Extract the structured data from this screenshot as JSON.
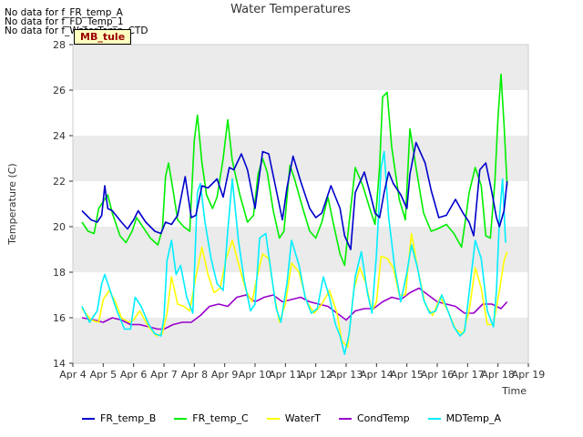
{
  "no_data_messages": [
    "No data for f_FR_temp_A",
    "No data for f_FD_Temp_1",
    "No data for f_WaterTemp_CTD"
  ],
  "site_badge": "MB_tule",
  "chart_data": {
    "type": "line",
    "title": "Water Temperatures",
    "xlabel": "Time",
    "ylabel": "Temperature (C)",
    "ylim": [
      14,
      28
    ],
    "yticks": [
      14,
      16,
      18,
      20,
      22,
      24,
      26,
      28
    ],
    "xlim": [
      4,
      19
    ],
    "xticks": [
      4,
      5,
      6,
      7,
      8,
      9,
      10,
      11,
      12,
      13,
      14,
      15,
      16,
      17,
      18,
      19
    ],
    "xtick_labels": [
      "Apr 4",
      "Apr 5",
      "Apr 6",
      "Apr 7",
      "Apr 8",
      "Apr 9",
      "Apr 10",
      "Apr 11",
      "Apr 12",
      "Apr 13",
      "Apr 14",
      "Apr 15",
      "Apr 16",
      "Apr 17",
      "Apr 18",
      "Apr 19"
    ],
    "grid": "horizontal bands",
    "legend_placement": "bottom",
    "series": [
      {
        "name": "FR_temp_B",
        "color": "#0000cc",
        "x": [
          4.3,
          4.6,
          4.8,
          4.95,
          5.05,
          5.15,
          5.3,
          5.6,
          5.8,
          6.0,
          6.15,
          6.4,
          6.7,
          6.9,
          7.05,
          7.25,
          7.45,
          7.7,
          7.9,
          8.05,
          8.25,
          8.45,
          8.75,
          8.95,
          9.15,
          9.3,
          9.55,
          9.75,
          10.0,
          10.25,
          10.45,
          10.7,
          10.9,
          11.05,
          11.25,
          11.5,
          11.8,
          12.0,
          12.2,
          12.5,
          12.8,
          12.95,
          13.15,
          13.3,
          13.6,
          13.8,
          13.95,
          14.1,
          14.25,
          14.4,
          14.55,
          14.8,
          15.0,
          15.1,
          15.3,
          15.6,
          15.8,
          16.05,
          16.3,
          16.6,
          16.85,
          17.05,
          17.2,
          17.4,
          17.6,
          17.8,
          17.95,
          18.05,
          18.2,
          18.3
        ],
        "y": [
          20.7,
          20.3,
          20.2,
          20.5,
          21.8,
          20.8,
          20.7,
          20.2,
          19.9,
          20.3,
          20.7,
          20.2,
          19.8,
          19.7,
          20.2,
          20.1,
          20.5,
          22.2,
          20.4,
          20.5,
          21.8,
          21.7,
          22.1,
          21.3,
          22.6,
          22.5,
          23.2,
          22.5,
          20.8,
          23.3,
          23.2,
          21.6,
          20.3,
          21.7,
          23.1,
          22.0,
          20.8,
          20.4,
          20.6,
          21.8,
          20.8,
          19.6,
          19.0,
          21.5,
          22.4,
          21.4,
          20.6,
          20.4,
          21.5,
          22.4,
          21.9,
          21.4,
          20.8,
          22.3,
          23.7,
          22.8,
          21.6,
          20.4,
          20.5,
          21.2,
          20.6,
          20.2,
          19.6,
          22.5,
          22.8,
          21.5,
          20.4,
          20.0,
          20.7,
          22.0
        ]
      },
      {
        "name": "FR_temp_C",
        "color": "#00ee00",
        "x": [
          4.3,
          4.5,
          4.7,
          4.85,
          5.0,
          5.15,
          5.3,
          5.55,
          5.75,
          5.95,
          6.1,
          6.3,
          6.55,
          6.8,
          6.95,
          7.05,
          7.15,
          7.3,
          7.45,
          7.65,
          7.85,
          8.0,
          8.1,
          8.25,
          8.4,
          8.6,
          8.75,
          8.95,
          9.1,
          9.25,
          9.5,
          9.75,
          9.95,
          10.1,
          10.25,
          10.4,
          10.6,
          10.8,
          10.95,
          11.15,
          11.3,
          11.55,
          11.8,
          12.0,
          12.2,
          12.4,
          12.6,
          12.8,
          12.95,
          13.1,
          13.3,
          13.55,
          13.8,
          13.95,
          14.1,
          14.2,
          14.35,
          14.5,
          14.75,
          14.95,
          15.1,
          15.3,
          15.55,
          15.8,
          16.0,
          16.3,
          16.55,
          16.8,
          16.95,
          17.05,
          17.25,
          17.45,
          17.6,
          17.75,
          17.9,
          18.0,
          18.1,
          18.2,
          18.3
        ],
        "y": [
          20.2,
          19.8,
          19.7,
          20.8,
          21.1,
          21.4,
          20.6,
          19.6,
          19.3,
          19.8,
          20.4,
          20.0,
          19.5,
          19.2,
          19.9,
          22.2,
          22.8,
          21.6,
          20.3,
          20.0,
          19.8,
          23.8,
          24.9,
          22.8,
          21.4,
          20.8,
          21.3,
          23.0,
          24.7,
          22.9,
          21.4,
          20.2,
          20.5,
          22.3,
          23.0,
          22.4,
          20.7,
          19.5,
          19.8,
          22.7,
          22.1,
          20.9,
          19.8,
          19.5,
          20.2,
          21.3,
          20.0,
          18.8,
          18.3,
          20.2,
          22.6,
          21.8,
          20.7,
          20.1,
          22.6,
          25.7,
          25.9,
          23.5,
          21.2,
          20.3,
          24.3,
          22.6,
          20.6,
          19.8,
          19.9,
          20.1,
          19.7,
          19.1,
          20.5,
          21.5,
          22.6,
          21.8,
          19.6,
          19.5,
          22.0,
          24.8,
          26.7,
          24.5,
          21.8
        ]
      },
      {
        "name": "WaterT",
        "color": "#ffff00",
        "x": [
          4.3,
          4.6,
          4.85,
          5.0,
          5.2,
          5.4,
          5.6,
          5.85,
          6.0,
          6.2,
          6.5,
          6.75,
          6.95,
          7.1,
          7.25,
          7.45,
          7.65,
          7.85,
          8.05,
          8.25,
          8.45,
          8.65,
          8.85,
          9.05,
          9.25,
          9.45,
          9.7,
          9.9,
          10.05,
          10.25,
          10.45,
          10.65,
          10.8,
          11.0,
          11.2,
          11.45,
          11.7,
          11.95,
          12.2,
          12.45,
          12.7,
          12.85,
          13.05,
          13.25,
          13.45,
          13.65,
          13.85,
          14.0,
          14.15,
          14.35,
          14.55,
          14.75,
          14.95,
          15.15,
          15.35,
          15.6,
          15.85,
          16.1,
          16.35,
          16.6,
          16.85,
          17.05,
          17.25,
          17.45,
          17.65,
          17.85,
          18.05,
          18.2,
          18.3
        ],
        "y": [
          16.4,
          15.9,
          15.8,
          16.8,
          17.2,
          16.7,
          16.0,
          15.8,
          15.9,
          16.3,
          15.6,
          15.2,
          15.3,
          16.2,
          17.8,
          16.6,
          16.5,
          16.3,
          17.8,
          19.1,
          17.9,
          17.1,
          17.3,
          18.6,
          19.4,
          18.4,
          17.2,
          16.7,
          17.7,
          18.8,
          18.6,
          16.9,
          15.8,
          16.6,
          18.4,
          18.0,
          16.7,
          16.2,
          16.6,
          17.2,
          16.2,
          15.0,
          14.7,
          17.2,
          18.2,
          17.5,
          16.3,
          16.7,
          18.7,
          18.6,
          18.2,
          17.0,
          17.0,
          19.7,
          18.2,
          16.6,
          16.1,
          16.9,
          16.3,
          15.5,
          15.3,
          16.3,
          18.2,
          17.3,
          15.7,
          15.7,
          17.2,
          18.5,
          18.9
        ]
      },
      {
        "name": "CondTemp",
        "color": "#9900cc",
        "x": [
          4.3,
          4.7,
          5.0,
          5.3,
          5.6,
          5.9,
          6.2,
          6.5,
          6.8,
          7.0,
          7.3,
          7.6,
          7.9,
          8.2,
          8.5,
          8.8,
          9.1,
          9.4,
          9.7,
          10.0,
          10.3,
          10.6,
          10.9,
          11.2,
          11.5,
          11.8,
          12.1,
          12.4,
          12.7,
          13.0,
          13.3,
          13.6,
          13.9,
          14.2,
          14.5,
          14.8,
          15.1,
          15.4,
          15.7,
          16.0,
          16.3,
          16.6,
          16.9,
          17.2,
          17.5,
          17.8,
          18.1,
          18.3
        ],
        "y": [
          16.0,
          15.9,
          15.8,
          16.0,
          15.9,
          15.7,
          15.7,
          15.6,
          15.5,
          15.5,
          15.7,
          15.8,
          15.8,
          16.1,
          16.5,
          16.6,
          16.5,
          16.9,
          17.0,
          16.7,
          16.9,
          17.0,
          16.7,
          16.8,
          16.9,
          16.7,
          16.6,
          16.5,
          16.2,
          15.9,
          16.3,
          16.4,
          16.4,
          16.7,
          16.9,
          16.8,
          17.1,
          17.3,
          17.0,
          16.7,
          16.6,
          16.5,
          16.2,
          16.2,
          16.6,
          16.6,
          16.4,
          16.7
        ]
      },
      {
        "name": "MDTemp_A",
        "color": "#00eeff",
        "x": [
          4.3,
          4.55,
          4.8,
          4.95,
          5.05,
          5.25,
          5.45,
          5.7,
          5.9,
          6.05,
          6.25,
          6.5,
          6.7,
          6.9,
          7.0,
          7.1,
          7.25,
          7.4,
          7.55,
          7.75,
          7.95,
          8.1,
          8.2,
          8.35,
          8.55,
          8.75,
          8.95,
          9.1,
          9.25,
          9.45,
          9.65,
          9.85,
          10.0,
          10.15,
          10.35,
          10.55,
          10.7,
          10.85,
          11.05,
          11.2,
          11.45,
          11.65,
          11.85,
          12.05,
          12.25,
          12.45,
          12.65,
          12.8,
          12.95,
          13.1,
          13.3,
          13.5,
          13.7,
          13.85,
          14.0,
          14.15,
          14.25,
          14.4,
          14.6,
          14.8,
          15.0,
          15.15,
          15.35,
          15.55,
          15.75,
          15.95,
          16.15,
          16.35,
          16.55,
          16.75,
          16.9,
          17.05,
          17.25,
          17.45,
          17.65,
          17.85,
          17.95,
          18.05,
          18.15,
          18.25
        ],
        "y": [
          16.5,
          15.8,
          16.3,
          17.5,
          17.9,
          17.1,
          16.3,
          15.5,
          15.5,
          16.9,
          16.5,
          15.7,
          15.3,
          15.2,
          16.0,
          18.5,
          19.4,
          17.9,
          18.3,
          16.9,
          16.2,
          21.5,
          21.9,
          20.2,
          18.6,
          17.5,
          17.2,
          19.8,
          22.1,
          19.4,
          17.6,
          16.3,
          16.6,
          19.5,
          19.7,
          17.8,
          16.4,
          15.8,
          17.5,
          19.4,
          18.3,
          16.9,
          16.2,
          16.4,
          17.8,
          16.9,
          15.7,
          15.2,
          14.4,
          15.3,
          17.8,
          18.9,
          17.1,
          16.2,
          18.8,
          22.6,
          23.3,
          20.4,
          18.2,
          16.7,
          18.0,
          19.2,
          18.2,
          16.8,
          16.2,
          16.3,
          17.0,
          16.3,
          15.6,
          15.2,
          15.4,
          17.1,
          19.4,
          18.6,
          16.3,
          15.6,
          17.2,
          20.4,
          22.1,
          19.3
        ]
      }
    ]
  }
}
